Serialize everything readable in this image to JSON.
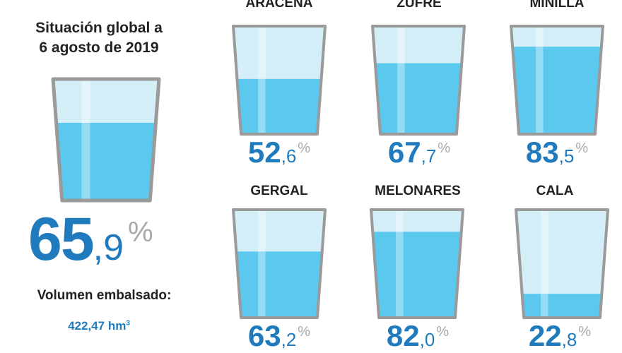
{
  "global": {
    "title_line1": "Situación global a",
    "title_line2": "6 agosto de 2019",
    "pct_int": "65",
    "pct_dec": ",9",
    "pct_sym": "%",
    "fill": 0.659,
    "volume_label": "Volumen embalsado:",
    "volume_value": "422,47 hm",
    "volume_unit_sup": "3"
  },
  "colors": {
    "water": "#5bc8ee",
    "water_light": "#d4eef8",
    "glass_edge": "#9a9a9a",
    "accent": "#1f7bbd",
    "pct_symbol": "#a8a8a8"
  },
  "chart_data": {
    "type": "bar",
    "title": "Situación global a 6 agosto de 2019",
    "categories": [
      "ARACENA",
      "ZUFRE",
      "MINILLA",
      "GERGAL",
      "MELONARES",
      "CALA"
    ],
    "values": [
      52.6,
      67.7,
      83.5,
      63.2,
      82.0,
      22.8
    ],
    "unit": "%",
    "global_value": 65.9,
    "ylim": [
      0,
      100
    ]
  },
  "reservoirs": [
    {
      "name": "ARACENA",
      "int": "52",
      "dec": ",6",
      "sym": "%"
    },
    {
      "name": "ZUFRE",
      "int": "67",
      "dec": ",7",
      "sym": "%"
    },
    {
      "name": "MINILLA",
      "int": "83",
      "dec": ",5",
      "sym": "%"
    },
    {
      "name": "GERGAL",
      "int": "63",
      "dec": ",2",
      "sym": "%"
    },
    {
      "name": "MELONARES",
      "int": "82",
      "dec": ",0",
      "sym": "%"
    },
    {
      "name": "CALA",
      "int": "22",
      "dec": ",8",
      "sym": "%"
    }
  ]
}
